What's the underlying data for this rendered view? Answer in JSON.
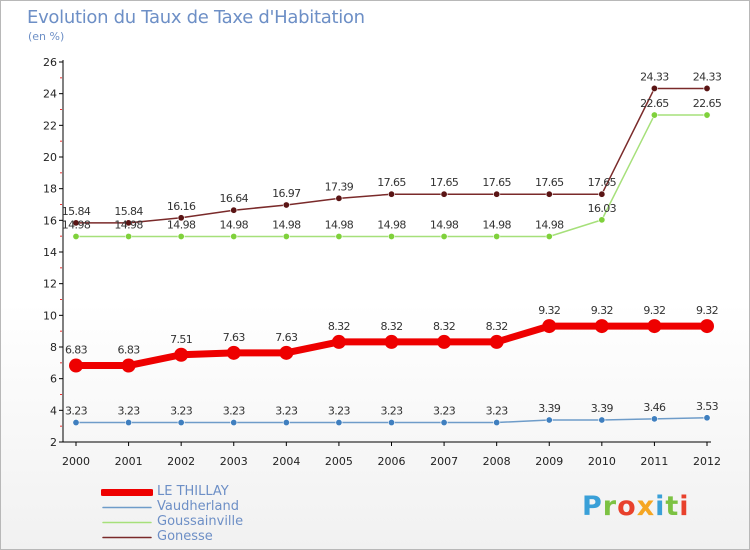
{
  "chart_data": {
    "type": "line",
    "title": "Evolution du Taux de Taxe d'Habitation",
    "unit_label": "(en %)",
    "x": [
      "2000",
      "2001",
      "2002",
      "2003",
      "2004",
      "2005",
      "2006",
      "2007",
      "2008",
      "2009",
      "2010",
      "2011",
      "2012"
    ],
    "y_ticks": [
      "2",
      "4",
      "6",
      "8",
      "10",
      "12",
      "14",
      "16",
      "18",
      "20",
      "22",
      "24",
      "26"
    ],
    "ylim": [
      2,
      26
    ],
    "grid": false,
    "legend_position": "bottom-left",
    "series": [
      {
        "name": "LE THILLAY",
        "color": "#ee0000",
        "marker_color": "#ee0000",
        "values": [
          6.83,
          6.83,
          7.51,
          7.63,
          7.63,
          8.32,
          8.32,
          8.32,
          8.32,
          9.32,
          9.32,
          9.32,
          9.32
        ],
        "labels": [
          "6.83",
          "6.83",
          "7.51",
          "7.63",
          "7.63",
          "8.32",
          "8.32",
          "8.32",
          "8.32",
          "9.32",
          "9.32",
          "9.32",
          "9.32"
        ]
      },
      {
        "name": "Vaudherland",
        "color": "#6e9cc9",
        "marker_color": "#3f7fbf",
        "values": [
          3.23,
          3.23,
          3.23,
          3.23,
          3.23,
          3.23,
          3.23,
          3.23,
          3.23,
          3.39,
          3.39,
          3.46,
          3.53
        ],
        "labels": [
          "3.23",
          "3.23",
          "3.23",
          "3.23",
          "3.23",
          "3.23",
          "3.23",
          "3.23",
          "3.23",
          "3.39",
          "3.39",
          "3.46",
          "3.53"
        ]
      },
      {
        "name": "Goussainville",
        "color": "#a6e07a",
        "marker_color": "#7fd13b",
        "values": [
          14.98,
          14.98,
          14.98,
          14.98,
          14.98,
          14.98,
          14.98,
          14.98,
          14.98,
          14.98,
          16.03,
          22.65,
          22.65
        ],
        "labels": [
          "14.98",
          "14.98",
          "14.98",
          "14.98",
          "14.98",
          "14.98",
          "14.98",
          "14.98",
          "14.98",
          "14.98",
          "16.03",
          "22.65",
          "22.65"
        ]
      },
      {
        "name": "Gonesse",
        "color": "#7a2a2a",
        "marker_color": "#5a1414",
        "values": [
          15.84,
          15.84,
          16.16,
          16.64,
          16.97,
          17.39,
          17.65,
          17.65,
          17.65,
          17.65,
          17.65,
          24.33,
          24.33
        ],
        "labels": [
          "15.84",
          "15.84",
          "16.16",
          "16.64",
          "16.97",
          "17.39",
          "17.65",
          "17.65",
          "17.65",
          "17.65",
          "17.65",
          "24.33",
          "24.33"
        ]
      }
    ]
  },
  "legend": {
    "items": [
      {
        "label": "LE THILLAY",
        "color": "#ee0000"
      },
      {
        "label": "Vaudherland",
        "color": "#6e9cc9"
      },
      {
        "label": "Goussainville",
        "color": "#a6e07a"
      },
      {
        "label": "Gonesse",
        "color": "#7a2a2a"
      }
    ]
  },
  "logo": {
    "letters": [
      "P",
      "r",
      "o",
      "x",
      "i",
      "t",
      "i"
    ],
    "colors": [
      "#3aa0d8",
      "#7cc243",
      "#e8412c",
      "#f5a623",
      "#3aa0d8",
      "#7cc243",
      "#e8412c"
    ]
  }
}
